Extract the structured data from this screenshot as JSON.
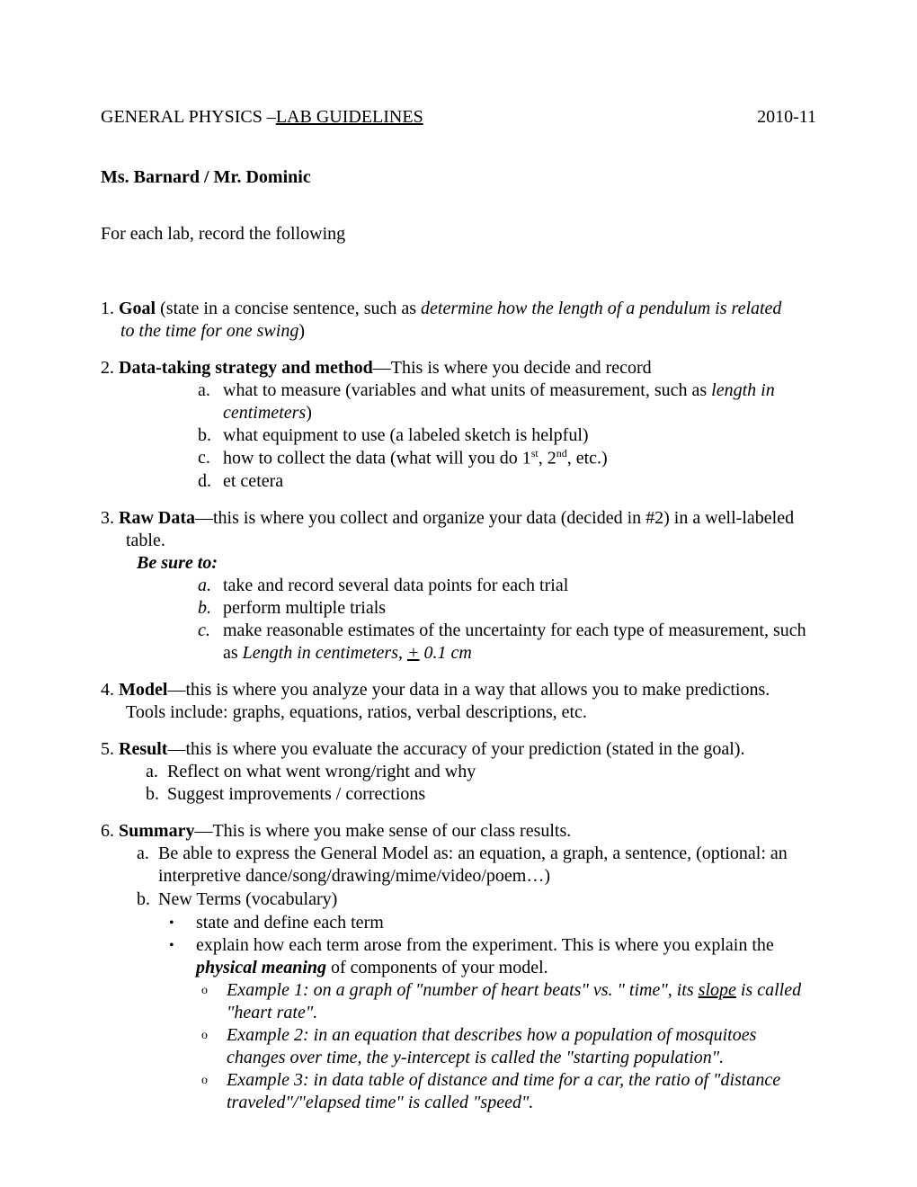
{
  "header": {
    "title_prefix": "GENERAL PHYSICS –",
    "title_underline": "LAB GUIDELINES",
    "year": "2010-11"
  },
  "instructors": "Ms. Barnard / Mr. Dominic",
  "intro": "For each lab, record the following",
  "goal": {
    "num": "1.",
    "label": "Goal",
    "text1": " (state in a concise sentence, such as ",
    "italic": "determine how the length of a pendulum is related to the time for one swing",
    "text2": ")"
  },
  "strategy": {
    "num": "2.",
    "label": "Data-taking strategy and method",
    "text": "—This is where you decide and record",
    "a_marker": "a.",
    "a_text1": "what to measure (variables and what units of measurement, such as ",
    "a_italic": "length in centimeters",
    "a_text2": ")",
    "b_marker": "b.",
    "b_text": "what equipment to use (a labeled sketch is helpful)",
    "c_marker": "c.",
    "c_text1": "how to collect the data (what will you do 1",
    "c_sup1": "st",
    "c_text2": ", 2",
    "c_sup2": "nd",
    "c_text3": ", etc.)",
    "d_marker": "d.",
    "d_text": "et cetera"
  },
  "rawdata": {
    "num": "3.",
    "label": "Raw Data",
    "text": "—this is where you collect and organize your data (decided in #2) in a well-labeled",
    "text2": "table.",
    "besure": "Be sure to:",
    "a_marker": "a.",
    "a_text": "take and record several data points for each trial",
    "b_marker": "b.",
    "b_text": "perform multiple trials",
    "c_marker": "c.",
    "c_text1": "make reasonable estimates of the uncertainty for each type of measurement, such as ",
    "c_italic": "Length in centimeters, ",
    "c_under": "+",
    "c_italic2": " 0.1 cm"
  },
  "model": {
    "num": "4.",
    "label": "Model",
    "text": "—this is where you analyze your data in a way that allows you to make predictions.",
    "tools": "Tools include: graphs, equations, ratios, verbal descriptions, etc."
  },
  "result": {
    "num": "5.",
    "label": "Result",
    "text": "—this is where you evaluate the accuracy of your prediction (stated in the goal).",
    "a_marker": "a.",
    "a_text": "Reflect on what went wrong/right and why",
    "b_marker": "b.",
    "b_text": "Suggest improvements / corrections"
  },
  "summary": {
    "num": "6.",
    "label": "Summary",
    "text": "—This is where you make sense of our class results.",
    "a_marker": "a.",
    "a_text": "Be able to express the General Model as: an equation, a graph, a sentence, (optional: an interpretive dance/song/drawing/mime/video/poem…)",
    "b_marker": "b.",
    "b_text": "New Terms (vocabulary)",
    "bullet1": "state and define each term",
    "bullet2_text1": "explain how each term arose from the experiment.  This is where you explain the ",
    "bullet2_italic": "physical meaning",
    "bullet2_text2": " of components of your model.",
    "ex1_text1": "Example 1:  on a graph of \"number of heart beats\" vs. \" time\", its ",
    "ex1_under": "slope",
    "ex1_text2": " is called \"heart rate\".",
    "ex2": "Example 2:  in an equation that describes how a population of mosquitoes changes over time, the y-intercept is called the \"starting population\".",
    "ex3": "Example 3:  in data table of distance and time for a car, the ratio of \"distance traveled\"/\"elapsed time\" is called \"speed\"."
  },
  "bullet_char": "•",
  "circ_char": "o"
}
